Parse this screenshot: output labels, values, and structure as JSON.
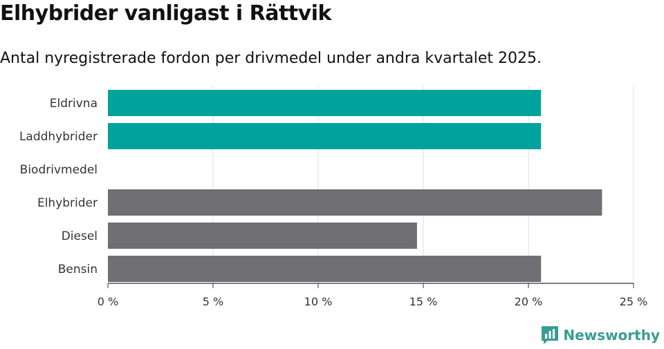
{
  "chart_data": {
    "type": "bar",
    "orientation": "horizontal",
    "title": "Elhybrider vanligast i Rättvik",
    "subtitle": "Antal nyregistrerade fordon per drivmedel under andra kvartalet 2025.",
    "categories": [
      "Eldrivna",
      "Laddhybrider",
      "Biodrivmedel",
      "Elhybrider",
      "Diesel",
      "Bensin"
    ],
    "values": [
      20.6,
      20.6,
      0,
      23.5,
      14.7,
      20.6
    ],
    "bar_colors": [
      "#00a39b",
      "#00a39b",
      "#00a39b",
      "#6e6e73",
      "#6e6e73",
      "#6e6e73"
    ],
    "xlim": [
      0,
      25
    ],
    "xticks": [
      0,
      5,
      10,
      15,
      20,
      25
    ],
    "xtick_labels": [
      "0 %",
      "5 %",
      "10 %",
      "15 %",
      "20 %",
      "25 %"
    ],
    "grid": true
  },
  "brand": {
    "name": "Newsworthy",
    "icon": "newsworthy-logo-icon",
    "color": "#3a9c96"
  }
}
